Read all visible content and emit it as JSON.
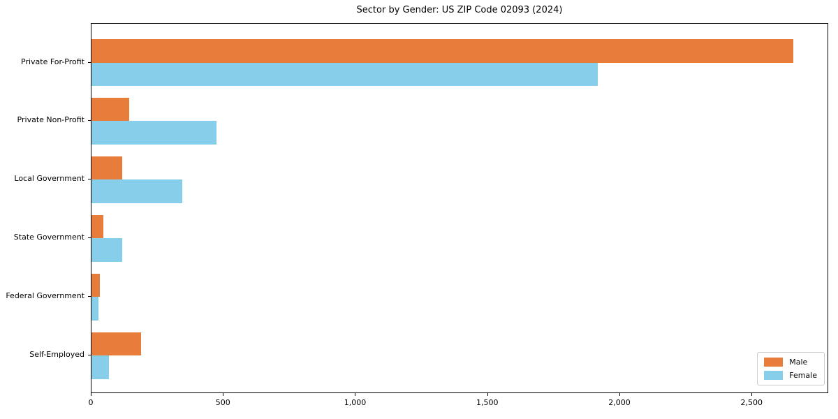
{
  "title": "Sector by Gender: US ZIP Code 02093 (2024)",
  "chart_data": {
    "type": "bar",
    "orientation": "horizontal",
    "title": "Sector by Gender: US ZIP Code 02093 (2024)",
    "categories": [
      "Private For-Profit",
      "Private Non-Profit",
      "Local Government",
      "State Government",
      "Federal Government",
      "Self-Employed"
    ],
    "series": [
      {
        "name": "Male",
        "color": "#e87d3b",
        "values": [
          2655,
          143,
          116,
          44,
          33,
          187
        ]
      },
      {
        "name": "Female",
        "color": "#87ceeb",
        "values": [
          1915,
          474,
          344,
          116,
          26,
          65
        ]
      }
    ],
    "xlabel": "",
    "ylabel": "",
    "xlim": [
      0,
      2790
    ],
    "x_ticks": [
      0,
      500,
      1000,
      1500,
      2000,
      2500
    ],
    "x_tick_labels": [
      "0",
      "500",
      "1,000",
      "1,500",
      "2,000",
      "2,500"
    ],
    "grid": false,
    "legend_position": "lower right",
    "colors": {
      "male": "#e87d3b",
      "female": "#87ceeb",
      "spine": "#000000",
      "background": "#ffffff"
    }
  }
}
